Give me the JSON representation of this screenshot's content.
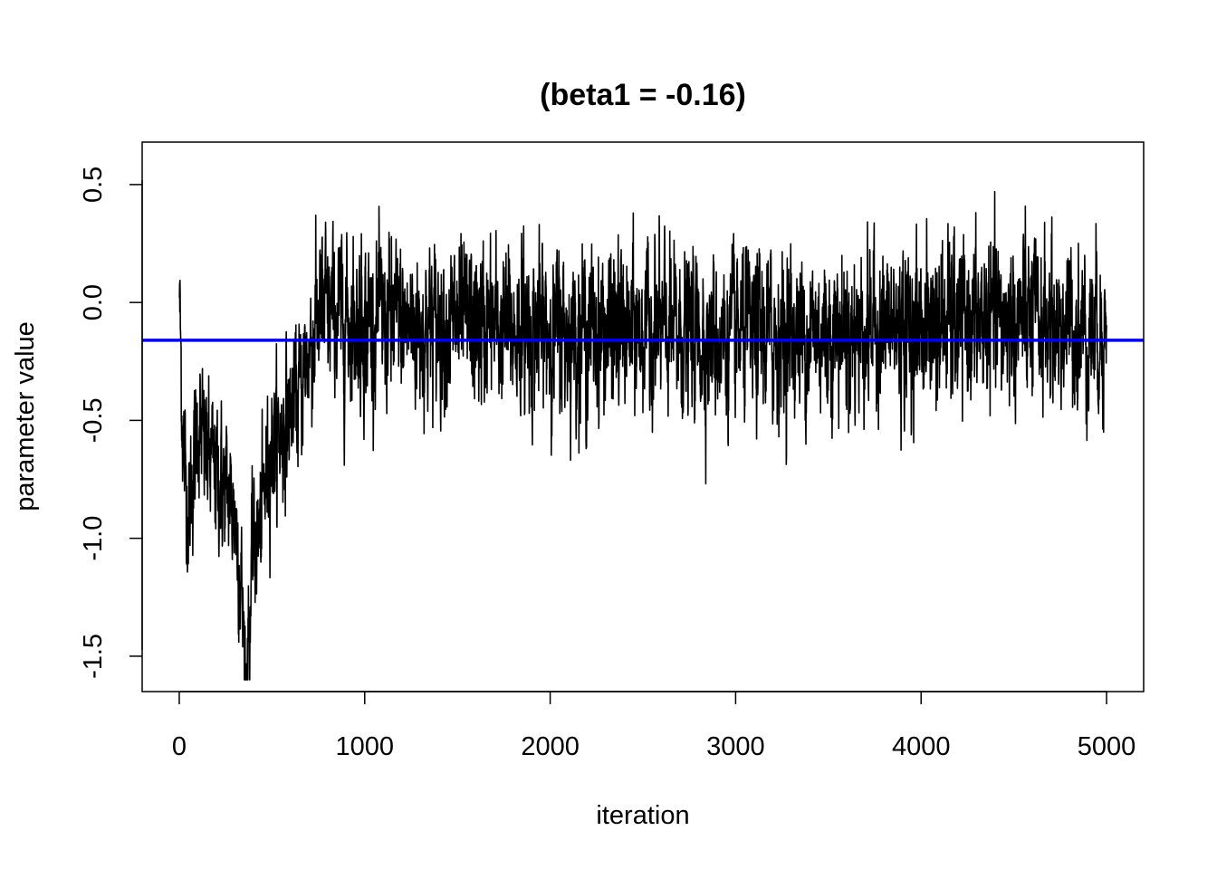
{
  "chart_data": {
    "type": "line",
    "title": "(beta1 = -0.16)",
    "xlabel": "iteration",
    "ylabel": "parameter value",
    "xlim": [
      -200,
      5200
    ],
    "ylim": [
      -1.65,
      0.68
    ],
    "xticks": [
      0,
      1000,
      2000,
      3000,
      4000,
      5000
    ],
    "xtick_labels": [
      "0",
      "1000",
      "2000",
      "3000",
      "4000",
      "5000"
    ],
    "yticks": [
      -1.5,
      -1.0,
      -0.5,
      0.0,
      0.5
    ],
    "ytick_labels": [
      "-1.5",
      "-1.0",
      "-0.5",
      "0.0",
      "0.5"
    ],
    "grid": false,
    "reference_line": {
      "y": -0.16,
      "color": "#0000ff",
      "orientation": "horizontal"
    },
    "series": [
      {
        "color": "#000000",
        "n_points": 5000,
        "x_range": [
          1,
          5000
        ],
        "trace_keypoints": [
          {
            "x": 1,
            "y": 0.02
          },
          {
            "x": 20,
            "y": -0.58
          },
          {
            "x": 50,
            "y": -0.9
          },
          {
            "x": 100,
            "y": -0.52
          },
          {
            "x": 150,
            "y": -0.65
          },
          {
            "x": 200,
            "y": -0.72
          },
          {
            "x": 250,
            "y": -0.8
          },
          {
            "x": 300,
            "y": -0.88
          },
          {
            "x": 330,
            "y": -1.15
          },
          {
            "x": 360,
            "y": -1.59
          },
          {
            "x": 400,
            "y": -1.05
          },
          {
            "x": 440,
            "y": -0.95
          },
          {
            "x": 470,
            "y": -0.7
          },
          {
            "x": 500,
            "y": -0.6
          },
          {
            "x": 550,
            "y": -0.55
          },
          {
            "x": 600,
            "y": -0.45
          },
          {
            "x": 650,
            "y": -0.38
          },
          {
            "x": 700,
            "y": -0.2
          },
          {
            "x": 750,
            "y": -0.05
          },
          {
            "x": 800,
            "y": -0.05
          },
          {
            "x": 1000,
            "y": -0.08
          },
          {
            "x": 1500,
            "y": -0.1
          },
          {
            "x": 2000,
            "y": -0.12
          },
          {
            "x": 2500,
            "y": -0.12
          },
          {
            "x": 3000,
            "y": -0.15
          },
          {
            "x": 3500,
            "y": -0.12
          },
          {
            "x": 4000,
            "y": -0.1
          },
          {
            "x": 4500,
            "y": -0.08
          },
          {
            "x": 5000,
            "y": -0.12
          }
        ]
      }
    ]
  }
}
